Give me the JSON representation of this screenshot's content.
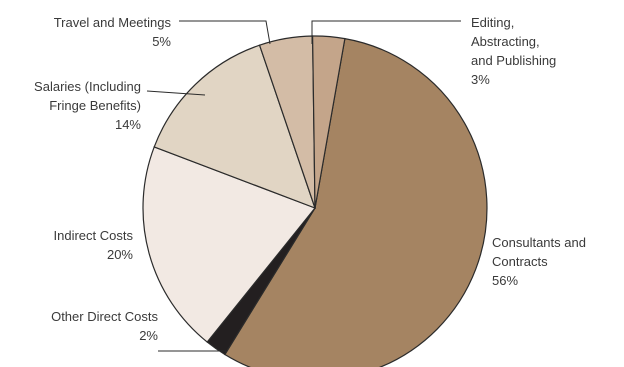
{
  "chart_data": {
    "type": "pie",
    "title": "",
    "slices": [
      {
        "name": "Consultants and Contracts",
        "lines": [
          "Consultants and",
          "Contracts"
        ],
        "value": 56,
        "pct_label": "56%",
        "color": "#a58462"
      },
      {
        "name": "Other Direct Costs",
        "lines": [
          "Other Direct Costs"
        ],
        "value": 2,
        "pct_label": "2%",
        "color": "#231f20"
      },
      {
        "name": "Indirect Costs",
        "lines": [
          "Indirect Costs"
        ],
        "value": 20,
        "pct_label": "20%",
        "color": "#f2e9e3"
      },
      {
        "name": "Salaries (Including Fringe Benefits)",
        "lines": [
          "Salaries (Including",
          "Fringe Benefits)"
        ],
        "value": 14,
        "pct_label": "14%",
        "color": "#e1d5c4"
      },
      {
        "name": "Travel and Meetings",
        "lines": [
          "Travel and Meetings"
        ],
        "value": 5,
        "pct_label": "5%",
        "color": "#d3bca6"
      },
      {
        "name": "Editing, Abstracting, and Publishing",
        "lines": [
          "Editing,",
          "Abstracting,",
          "and Publishing"
        ],
        "value": 3,
        "pct_label": "3%",
        "color": "#c4a58a"
      }
    ]
  }
}
